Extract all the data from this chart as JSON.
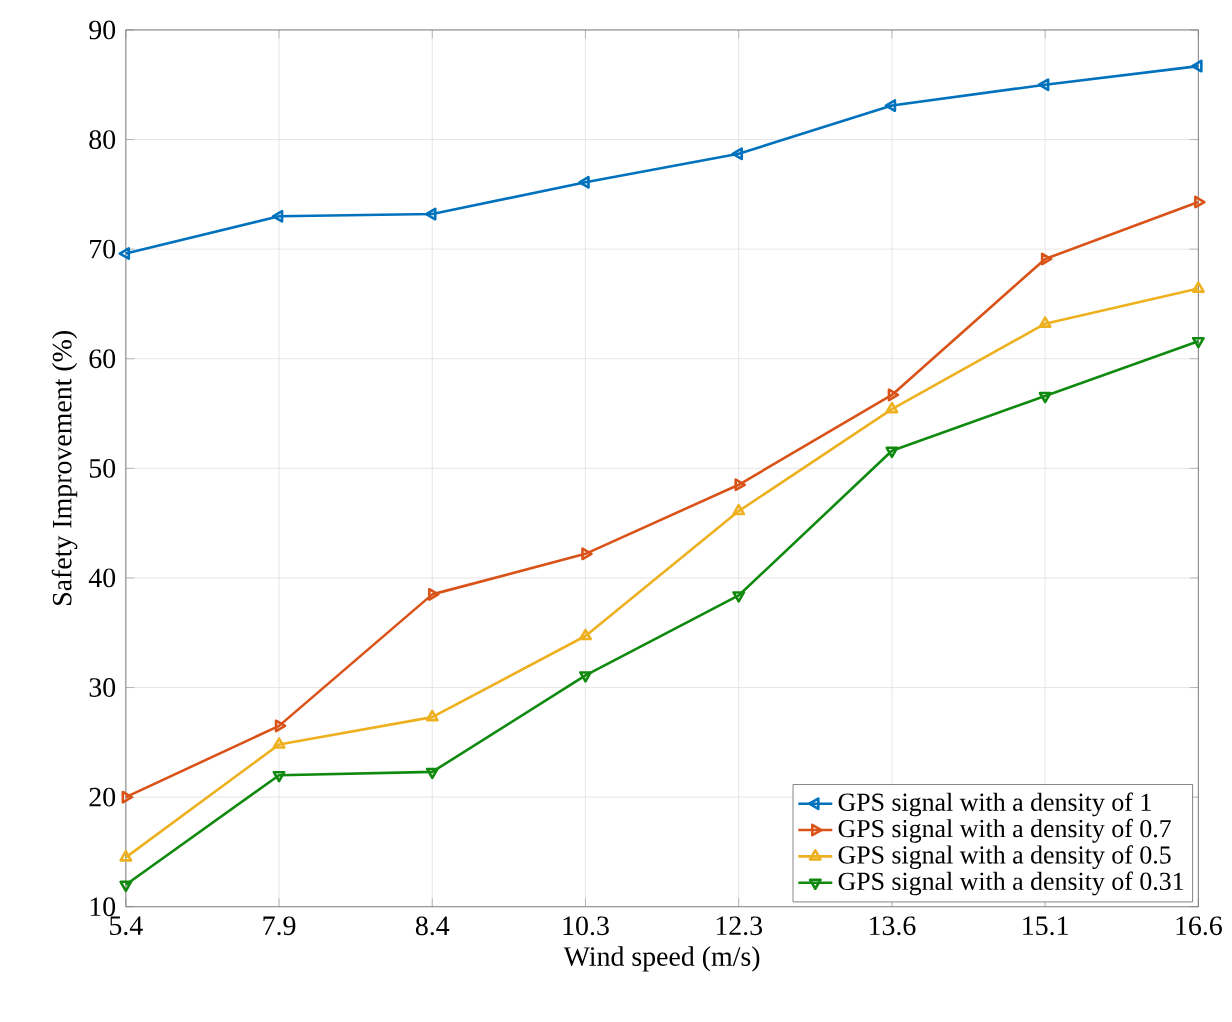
{
  "chart_data": {
    "type": "line",
    "xlabel": "Wind speed (m/s)",
    "ylabel": "Safety Improvement (%)",
    "categories": [
      "5.4",
      "7.9",
      "8.4",
      "10.3",
      "12.3",
      "13.6",
      "15.1",
      "16.6"
    ],
    "ylim": [
      10,
      90
    ],
    "yticks": [
      10,
      20,
      30,
      40,
      50,
      60,
      70,
      80,
      90
    ],
    "grid": true,
    "legend": "bottom right",
    "marker": "triangle",
    "line_style": "solid",
    "series": [
      {
        "name": "GPS signal with a density of 1",
        "color": "#0072bd",
        "values": [
          69.6,
          73,
          73.2,
          76.1,
          78.7,
          83.1,
          85,
          86.7
        ]
      },
      {
        "name": "GPS signal with a density of 0.7",
        "color": "#d95319",
        "values": [
          20,
          26.5,
          38.5,
          42.2,
          48.5,
          56.7,
          69.1,
          74.3
        ]
      },
      {
        "name": "GPS signal with a density of 0.5",
        "color": "#edb120",
        "values": [
          14.5,
          24.8,
          27.3,
          34.7,
          46.1,
          55.4,
          63.2,
          66.4
        ]
      },
      {
        "name": "GPS signal with a density of 0.31",
        "color": "#0f8a0f",
        "values": [
          12,
          22,
          22.3,
          31.1,
          38.4,
          51.6,
          56.6,
          61.6
        ]
      }
    ]
  }
}
